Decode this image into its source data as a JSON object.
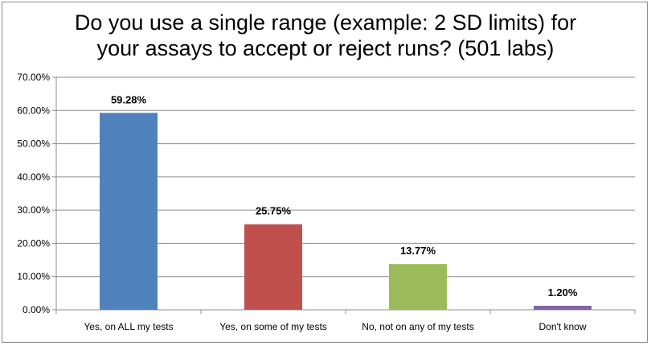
{
  "chart_data": {
    "type": "bar",
    "title_lines": [
      "Do you use a single range (example: 2 SD limits) for",
      "your assays to accept or reject runs? (501 labs)"
    ],
    "categories": [
      "Yes, on ALL my tests",
      "Yes, on some of my tests",
      "No, not on any of my tests",
      "Don't know"
    ],
    "values": [
      59.28,
      25.75,
      13.77,
      1.2
    ],
    "data_labels": [
      "59.28%",
      "25.75%",
      "13.77%",
      "1.20%"
    ],
    "bar_colors": [
      "#4f81bd",
      "#c0504d",
      "#9bbb59",
      "#8064a2"
    ],
    "ylim": [
      0,
      70
    ],
    "yticks": [
      0,
      10,
      20,
      30,
      40,
      50,
      60,
      70
    ],
    "ytick_labels": [
      "0.00%",
      "10.00%",
      "20.00%",
      "30.00%",
      "40.00%",
      "50.00%",
      "60.00%",
      "70.00%"
    ],
    "grid": true,
    "legend": false
  }
}
